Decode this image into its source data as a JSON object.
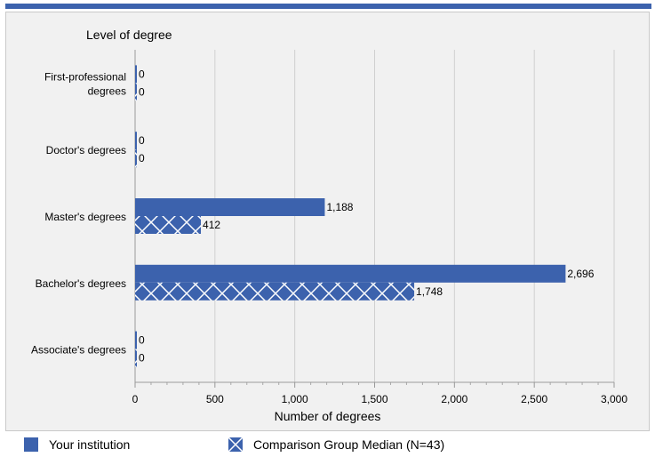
{
  "chart_data": {
    "type": "bar",
    "orientation": "horizontal",
    "categories": [
      "First-professional degrees",
      "Doctor's degrees",
      "Master's degrees",
      "Bachelor's degrees",
      "Associate's degrees"
    ],
    "category_lines": [
      [
        "First-professional",
        "degrees"
      ],
      [
        "Doctor's degrees"
      ],
      [
        "Master's degrees"
      ],
      [
        "Bachelor's degrees"
      ],
      [
        "Associate's degrees"
      ]
    ],
    "series": [
      {
        "name": "Your institution",
        "values": [
          0,
          0,
          1188,
          2696,
          0
        ],
        "labels": [
          "0",
          "0",
          "1,188",
          "2,696",
          "0"
        ],
        "color": "#3c62ad",
        "pattern": "solid"
      },
      {
        "name": "Comparison Group Median (N=43)",
        "values": [
          0,
          0,
          412,
          1748,
          0
        ],
        "labels": [
          "0",
          "0",
          "412",
          "1,748",
          "0"
        ],
        "color": "#3c62ad",
        "pattern": "crosshatch"
      }
    ],
    "xlabel": "Number of degrees",
    "ylabel": "Level of degree",
    "xlim": [
      0,
      3000
    ],
    "xticks": [
      0,
      500,
      1000,
      1500,
      2000,
      2500,
      3000
    ],
    "xtick_labels": [
      "0",
      "500",
      "1,000",
      "1,500",
      "2,000",
      "2,500",
      "3,000"
    ],
    "grid": true,
    "legend_position": "bottom"
  },
  "colors": {
    "accent": "#3c62ad",
    "panel": "#f1f1f1",
    "grid": "#d0d0d0"
  }
}
